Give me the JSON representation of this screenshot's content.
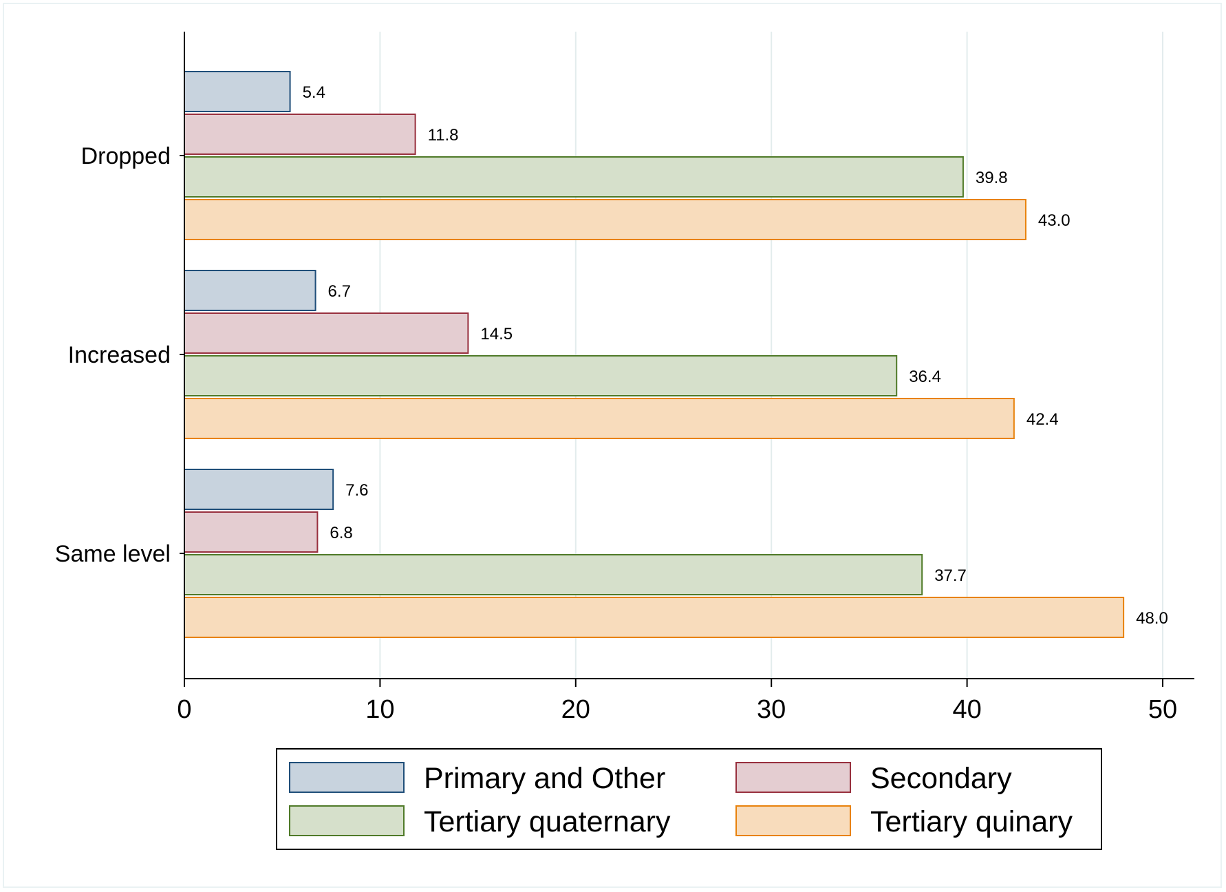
{
  "chart_data": {
    "type": "bar",
    "orientation": "horizontal",
    "categories": [
      "Dropped",
      "Increased",
      "Same level"
    ],
    "series": [
      {
        "name": "Primary and Other",
        "values": [
          5.4,
          6.7,
          7.6
        ],
        "fill": "#c8d3de",
        "stroke": "#1f4e79"
      },
      {
        "name": "Secondary",
        "values": [
          11.8,
          14.5,
          6.8
        ],
        "fill": "#e4cdd1",
        "stroke": "#98303e"
      },
      {
        "name": "Tertiary quaternary",
        "values": [
          39.8,
          36.4,
          37.7
        ],
        "fill": "#d6e0cb",
        "stroke": "#4f7a28"
      },
      {
        "name": "Tertiary quinary",
        "values": [
          43.0,
          42.4,
          48.0
        ],
        "fill": "#f8dcbc",
        "stroke": "#e8820c"
      }
    ],
    "xlim": [
      0,
      50
    ],
    "xticks": [
      0,
      10,
      20,
      30,
      40,
      50
    ],
    "grid": true,
    "value_labels": true,
    "legend_position": "bottom",
    "title": "",
    "xlabel": "",
    "ylabel": ""
  }
}
